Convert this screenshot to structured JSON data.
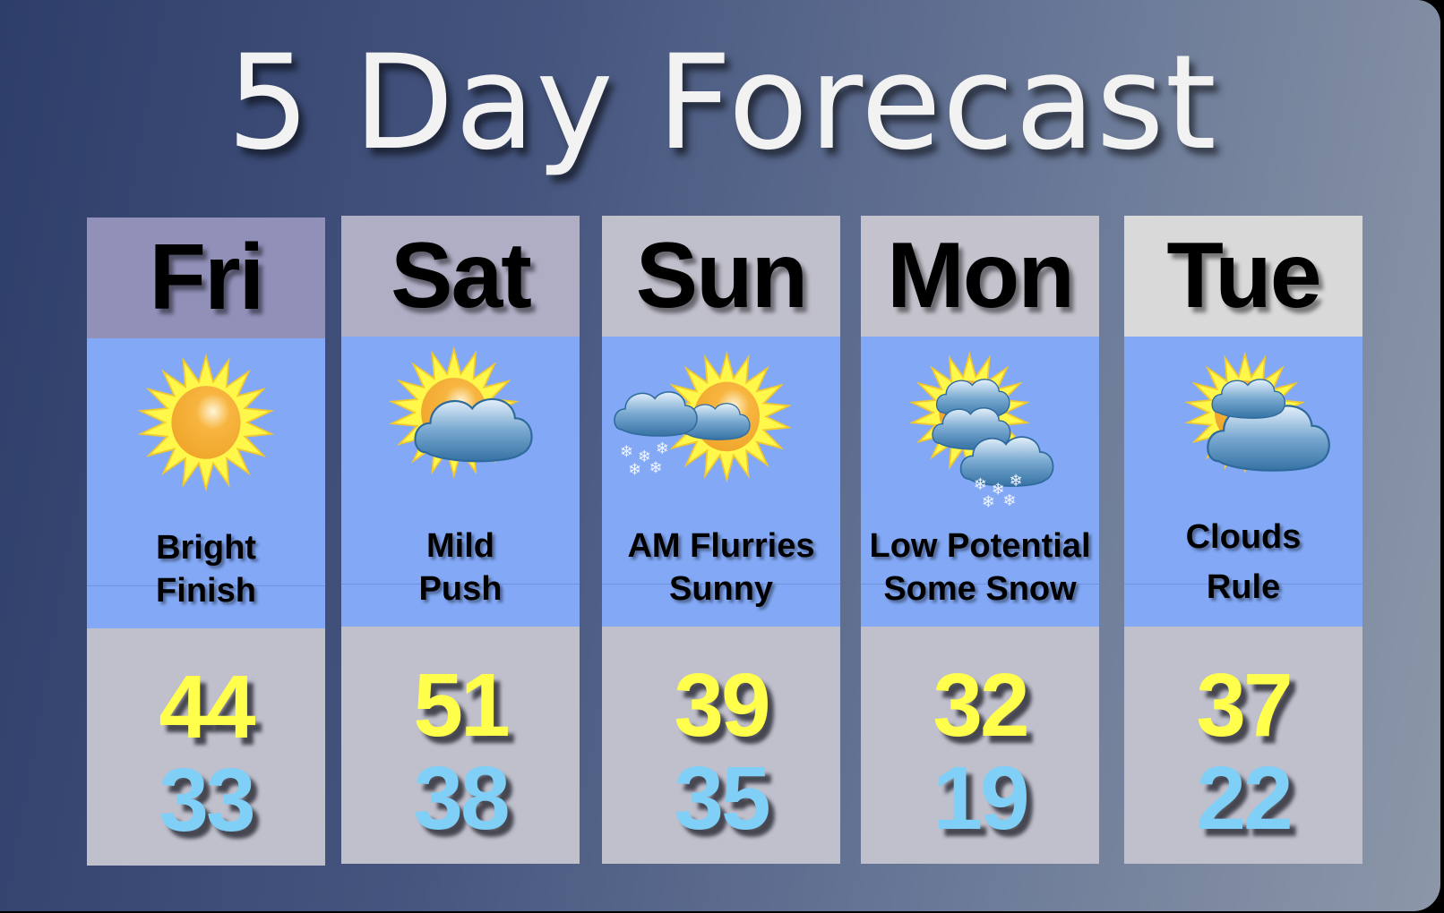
{
  "title": "5 Day Forecast",
  "colors": {
    "high": "#ffff4c",
    "low": "#7fcff6",
    "panel": "#82a8f6",
    "temp_bg": "#c0c0cd"
  },
  "days": [
    {
      "day": "Fri",
      "line1": "Bright",
      "line2": "Finish",
      "high": "44",
      "low": "33",
      "icon": "sunny-icon",
      "header_color": "#9190b9"
    },
    {
      "day": "Sat",
      "line1": "Mild",
      "line2": "Push",
      "high": "51",
      "low": "38",
      "icon": "partly-cloudy-icon",
      "header_color": "#b0aec5"
    },
    {
      "day": "Sun",
      "line1": "AM Flurries",
      "line2": "Sunny",
      "high": "39",
      "low": "35",
      "icon": "sun-flurries-icon",
      "header_color": "#c0bfcc"
    },
    {
      "day": "Mon",
      "line1": "Low Potential",
      "line2": "Some Snow",
      "high": "32",
      "low": "19",
      "icon": "cloudy-snow-icon",
      "header_color": "#c4c3cd"
    },
    {
      "day": "Tue",
      "line1": "Clouds",
      "line2": "Rule",
      "high": "37",
      "low": "22",
      "icon": "mostly-cloudy-icon",
      "header_color": "#d9d9da"
    }
  ]
}
